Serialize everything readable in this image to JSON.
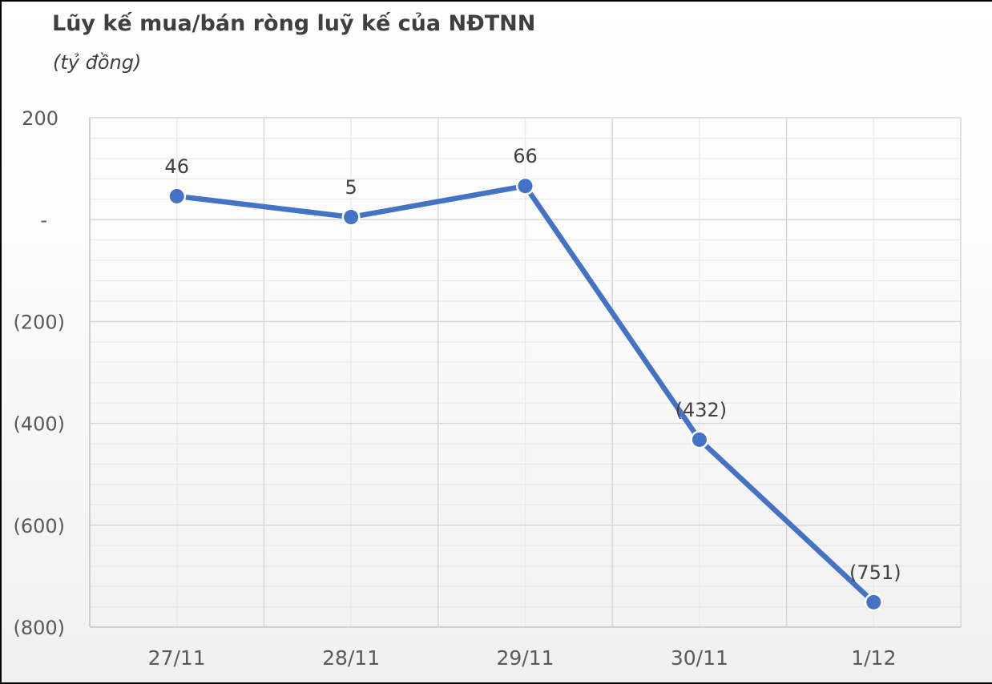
{
  "chart_data": {
    "type": "line",
    "title": "Lũy kế mua/bán ròng luỹ kế của NĐTNN",
    "units_label": "(tỷ đồng)",
    "xlabel": "",
    "ylabel": "",
    "categories": [
      "27/11",
      "28/11",
      "29/11",
      "30/11",
      "1/12"
    ],
    "values": [
      46,
      5,
      66,
      -432,
      -751
    ],
    "point_labels": [
      "46",
      "5",
      "66",
      "(432)",
      "(751)"
    ],
    "y_ticks": [
      {
        "value": 200,
        "label": "200"
      },
      {
        "value": 0,
        "label": "-"
      },
      {
        "value": -200,
        "label": "(200)"
      },
      {
        "value": -400,
        "label": "(400)"
      },
      {
        "value": -600,
        "label": "(600)"
      },
      {
        "value": -800,
        "label": "(800)"
      }
    ],
    "ylim": [
      -800,
      200
    ],
    "y_major_unit": 200,
    "y_minor_unit": 40,
    "grid": "major+minor",
    "legend": "none",
    "colors": {
      "line": "#4472C4",
      "marker": "#4472C4",
      "marker_halo": "#ffffff",
      "grid_major": "#d5d5d5",
      "grid_minor": "#eaeaea",
      "axis_line": "#c9c9c9",
      "title_text": "#3f3f3f",
      "point_label_text": "#404040",
      "tick_label_text": "#595959"
    }
  }
}
